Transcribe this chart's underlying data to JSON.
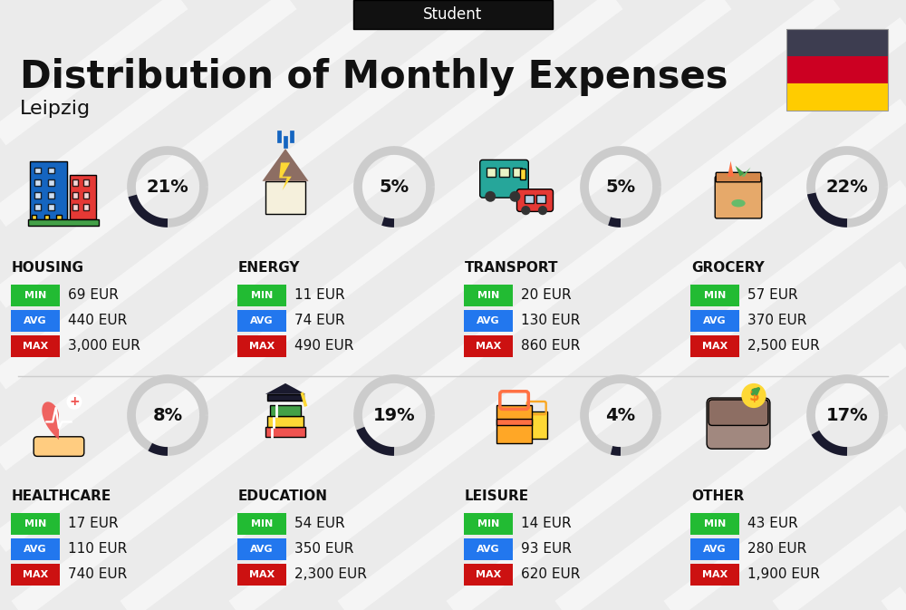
{
  "title": "Distribution of Monthly Expenses",
  "subtitle": "Leipzig",
  "header_label": "Student",
  "bg_color": "#ebebeb",
  "items": [
    {
      "name": "HOUSING",
      "percent": 21,
      "min": "69 EUR",
      "avg": "440 EUR",
      "max": "3,000 EUR",
      "row": 0,
      "col": 0
    },
    {
      "name": "ENERGY",
      "percent": 5,
      "min": "11 EUR",
      "avg": "74 EUR",
      "max": "490 EUR",
      "row": 0,
      "col": 1
    },
    {
      "name": "TRANSPORT",
      "percent": 5,
      "min": "20 EUR",
      "avg": "130 EUR",
      "max": "860 EUR",
      "row": 0,
      "col": 2
    },
    {
      "name": "GROCERY",
      "percent": 22,
      "min": "57 EUR",
      "avg": "370 EUR",
      "max": "2,500 EUR",
      "row": 0,
      "col": 3
    },
    {
      "name": "HEALTHCARE",
      "percent": 8,
      "min": "17 EUR",
      "avg": "110 EUR",
      "max": "740 EUR",
      "row": 1,
      "col": 0
    },
    {
      "name": "EDUCATION",
      "percent": 19,
      "min": "54 EUR",
      "avg": "350 EUR",
      "max": "2,300 EUR",
      "row": 1,
      "col": 1
    },
    {
      "name": "LEISURE",
      "percent": 4,
      "min": "14 EUR",
      "avg": "93 EUR",
      "max": "620 EUR",
      "row": 1,
      "col": 2
    },
    {
      "name": "OTHER",
      "percent": 17,
      "min": "43 EUR",
      "avg": "280 EUR",
      "max": "1,900 EUR",
      "row": 1,
      "col": 3
    }
  ],
  "min_color": "#22bb33",
  "avg_color": "#2277ee",
  "max_color": "#cc1111",
  "circle_dark": "#1a1a2e",
  "circle_light": "#cccccc",
  "text_color": "#111111",
  "flag_colors": [
    "#3d3d50",
    "#cc0022",
    "#ffcc00"
  ],
  "stripe_color": "#ffffff",
  "stripe_alpha": 0.55,
  "stripe_lw": 18
}
